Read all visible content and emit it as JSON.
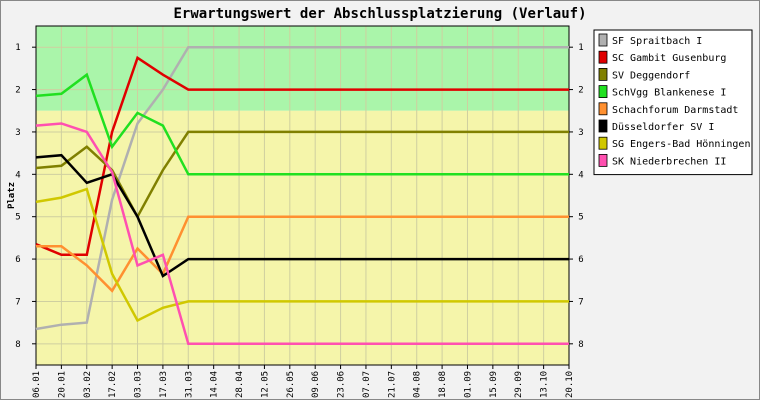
{
  "chart_data": {
    "type": "line",
    "title": "Erwartungswert der Abschlussplatzierung (Verlauf)",
    "ylabel": "Platz",
    "xlabel": "",
    "ylim": [
      0.5,
      8.5
    ],
    "y_inverted": true,
    "y_ticks": [
      "1",
      "2",
      "3",
      "4",
      "5",
      "6",
      "7",
      "8"
    ],
    "bands": [
      {
        "from": 0.5,
        "to": 2.5,
        "color": "#aaf5aa"
      },
      {
        "from": 2.5,
        "to": 8.5,
        "color": "#f5f5aa"
      }
    ],
    "grid": true,
    "legend_position": "right",
    "x": [
      "06.01",
      "20.01",
      "03.02",
      "17.02",
      "03.03",
      "17.03",
      "31.03",
      "14.04",
      "28.04",
      "12.05",
      "26.05",
      "09.06",
      "23.06",
      "07.07",
      "21.07",
      "04.08",
      "18.08",
      "01.09",
      "15.09",
      "29.09",
      "13.10",
      "20.10"
    ],
    "series": [
      {
        "name": "SF Spraitbach I",
        "color": "#b0b0b0",
        "values": [
          7.65,
          7.55,
          7.5,
          4.6,
          2.8,
          2.0,
          1.0,
          1,
          1,
          1,
          1,
          1,
          1,
          1,
          1,
          1,
          1,
          1,
          1,
          1,
          1,
          1
        ]
      },
      {
        "name": "SC Gambit Gusenburg",
        "color": "#e00000",
        "values": [
          5.65,
          5.9,
          5.9,
          3.0,
          1.25,
          1.65,
          2.0,
          2,
          2,
          2,
          2,
          2,
          2,
          2,
          2,
          2,
          2,
          2,
          2,
          2,
          2,
          2
        ]
      },
      {
        "name": "SV Deggendorf",
        "color": "#808000",
        "values": [
          3.85,
          3.8,
          3.35,
          3.9,
          5.0,
          3.9,
          3.0,
          3,
          3,
          3,
          3,
          3,
          3,
          3,
          3,
          3,
          3,
          3,
          3,
          3,
          3,
          3
        ]
      },
      {
        "name": "SchVgg Blankenese I",
        "color": "#20e020",
        "values": [
          2.15,
          2.1,
          1.65,
          3.35,
          2.55,
          2.85,
          4.0,
          4,
          4,
          4,
          4,
          4,
          4,
          4,
          4,
          4,
          4,
          4,
          4,
          4,
          4,
          4
        ]
      },
      {
        "name": "Schachforum Darmstadt",
        "color": "#ff9030",
        "values": [
          5.7,
          5.7,
          6.15,
          6.75,
          5.75,
          6.35,
          5.0,
          5,
          5,
          5,
          5,
          5,
          5,
          5,
          5,
          5,
          5,
          5,
          5,
          5,
          5,
          5
        ]
      },
      {
        "name": "Düsseldorfer SV I",
        "color": "#000000",
        "values": [
          3.6,
          3.55,
          4.2,
          4.0,
          5.0,
          6.4,
          6.0,
          6,
          6,
          6,
          6,
          6,
          6,
          6,
          6,
          6,
          6,
          6,
          6,
          6,
          6,
          6
        ]
      },
      {
        "name": "SG Engers-Bad Hönningen",
        "color": "#d0c800",
        "values": [
          4.65,
          4.55,
          4.35,
          6.35,
          7.45,
          7.15,
          7.0,
          7,
          7,
          7,
          7,
          7,
          7,
          7,
          7,
          7,
          7,
          7,
          7,
          7,
          7,
          7
        ]
      },
      {
        "name": "SK Niederbrechen II",
        "color": "#ff50b0",
        "values": [
          2.85,
          2.8,
          3.0,
          3.95,
          6.15,
          5.9,
          8.0,
          8,
          8,
          8,
          8,
          8,
          8,
          8,
          8,
          8,
          8,
          8,
          8,
          8,
          8,
          8
        ]
      }
    ]
  }
}
